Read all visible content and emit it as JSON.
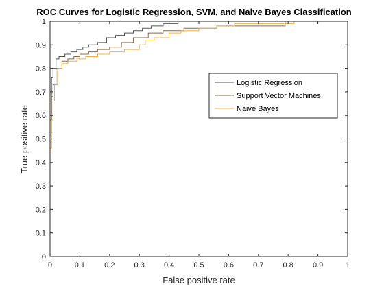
{
  "chart_data": {
    "type": "line",
    "title": "ROC Curves for Logistic Regression, SVM, and Naive Bayes Classification",
    "xlabel": "False positive rate",
    "ylabel": "True positive rate",
    "xlim": [
      0,
      1
    ],
    "ylim": [
      0,
      1
    ],
    "xticks": [
      "0",
      "0.1",
      "0.2",
      "0.3",
      "0.4",
      "0.5",
      "0.6",
      "0.7",
      "0.8",
      "0.9",
      "1"
    ],
    "yticks": [
      "0",
      "0.1",
      "0.2",
      "0.3",
      "0.4",
      "0.5",
      "0.6",
      "0.7",
      "0.8",
      "0.9",
      "1"
    ],
    "grid": false,
    "legend_position": "right-upper",
    "series": [
      {
        "name": "Logistic Regression",
        "color": "#555555",
        "x": [
          0,
          0,
          0.005,
          0.005,
          0.01,
          0.01,
          0.02,
          0.02,
          0.03,
          0.03,
          0.05,
          0.05,
          0.07,
          0.07,
          0.09,
          0.09,
          0.11,
          0.11,
          0.13,
          0.13,
          0.16,
          0.16,
          0.19,
          0.19,
          0.22,
          0.22,
          0.25,
          0.25,
          0.28,
          0.28,
          0.31,
          0.31,
          0.34,
          0.34,
          0.38,
          0.38,
          0.43,
          0.43,
          0.6,
          0.6,
          1
        ],
        "y": [
          0,
          0.58,
          0.58,
          0.76,
          0.76,
          0.8,
          0.8,
          0.84,
          0.84,
          0.85,
          0.85,
          0.86,
          0.86,
          0.87,
          0.87,
          0.88,
          0.88,
          0.89,
          0.89,
          0.9,
          0.9,
          0.91,
          0.91,
          0.93,
          0.93,
          0.94,
          0.94,
          0.95,
          0.95,
          0.96,
          0.96,
          0.97,
          0.97,
          0.98,
          0.98,
          0.99,
          0.99,
          1,
          1,
          1,
          1
        ]
      },
      {
        "name": "Support Vector Machines",
        "color": "#8a6a4a",
        "x": [
          0,
          0,
          0.005,
          0.005,
          0.01,
          0.01,
          0.02,
          0.02,
          0.04,
          0.04,
          0.06,
          0.06,
          0.08,
          0.08,
          0.1,
          0.1,
          0.13,
          0.13,
          0.16,
          0.16,
          0.2,
          0.2,
          0.24,
          0.24,
          0.28,
          0.28,
          0.33,
          0.33,
          0.38,
          0.38,
          0.45,
          0.45,
          0.56,
          0.56,
          0.79,
          0.79,
          1
        ],
        "y": [
          0,
          0.52,
          0.52,
          0.68,
          0.68,
          0.73,
          0.73,
          0.8,
          0.8,
          0.83,
          0.83,
          0.84,
          0.84,
          0.85,
          0.85,
          0.86,
          0.86,
          0.87,
          0.87,
          0.88,
          0.88,
          0.89,
          0.89,
          0.91,
          0.91,
          0.93,
          0.93,
          0.95,
          0.95,
          0.96,
          0.96,
          0.97,
          0.97,
          0.98,
          0.98,
          1,
          1
        ]
      },
      {
        "name": "Naive Bayes",
        "color": "#f0b040",
        "x": [
          0,
          0,
          0.005,
          0.005,
          0.01,
          0.01,
          0.015,
          0.015,
          0.025,
          0.025,
          0.04,
          0.04,
          0.06,
          0.06,
          0.09,
          0.09,
          0.12,
          0.12,
          0.16,
          0.16,
          0.2,
          0.2,
          0.25,
          0.25,
          0.3,
          0.3,
          0.32,
          0.32,
          0.35,
          0.35,
          0.4,
          0.4,
          0.44,
          0.44,
          0.5,
          0.5,
          0.56,
          0.56,
          0.62,
          0.62,
          0.82,
          0.82,
          1
        ],
        "y": [
          0,
          0.46,
          0.46,
          0.58,
          0.58,
          0.66,
          0.66,
          0.73,
          0.73,
          0.8,
          0.8,
          0.82,
          0.82,
          0.83,
          0.83,
          0.84,
          0.84,
          0.85,
          0.85,
          0.86,
          0.86,
          0.87,
          0.87,
          0.88,
          0.88,
          0.9,
          0.9,
          0.92,
          0.92,
          0.93,
          0.93,
          0.95,
          0.95,
          0.96,
          0.96,
          0.97,
          0.97,
          0.98,
          0.98,
          0.99,
          0.99,
          1,
          1
        ]
      }
    ]
  }
}
